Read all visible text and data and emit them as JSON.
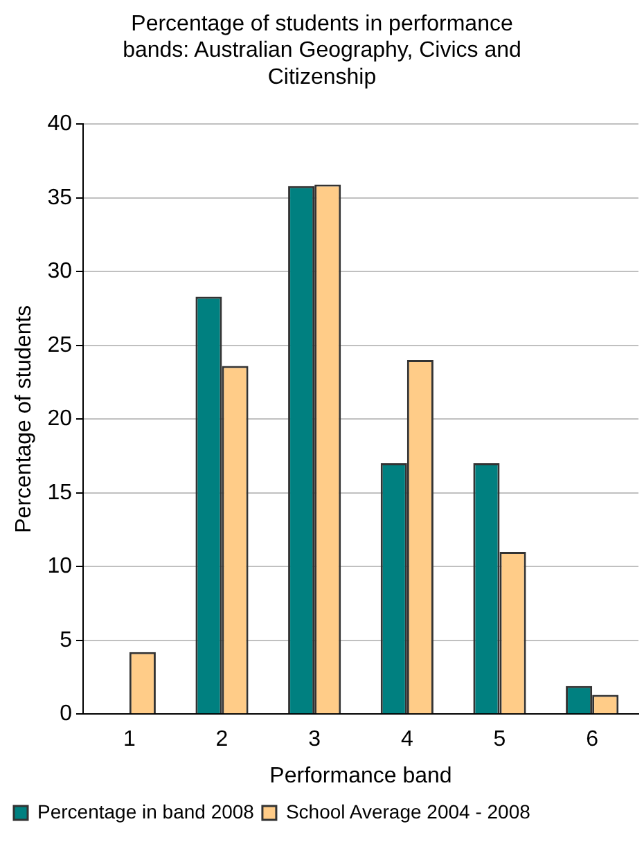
{
  "chart_data": {
    "type": "bar",
    "title": "Percentage of students in performance bands: Australian Geography, Civics and Citizenship",
    "xlabel": "Performance band",
    "ylabel": "Percentage of students",
    "categories": [
      "1",
      "2",
      "3",
      "4",
      "5",
      "6"
    ],
    "series": [
      {
        "name": "Percentage in band 2008",
        "color": "#008080",
        "values": [
          0,
          28.3,
          35.8,
          17.0,
          17.0,
          1.9
        ]
      },
      {
        "name": "School Average 2004 - 2008",
        "color": "#ffcc88",
        "values": [
          4.2,
          23.6,
          35.9,
          24.0,
          11.0,
          1.3
        ]
      }
    ],
    "ylim": [
      0,
      40
    ],
    "yticks": [
      0,
      5,
      10,
      15,
      20,
      25,
      30,
      35,
      40
    ],
    "grid": "y",
    "legend": "bottom"
  }
}
